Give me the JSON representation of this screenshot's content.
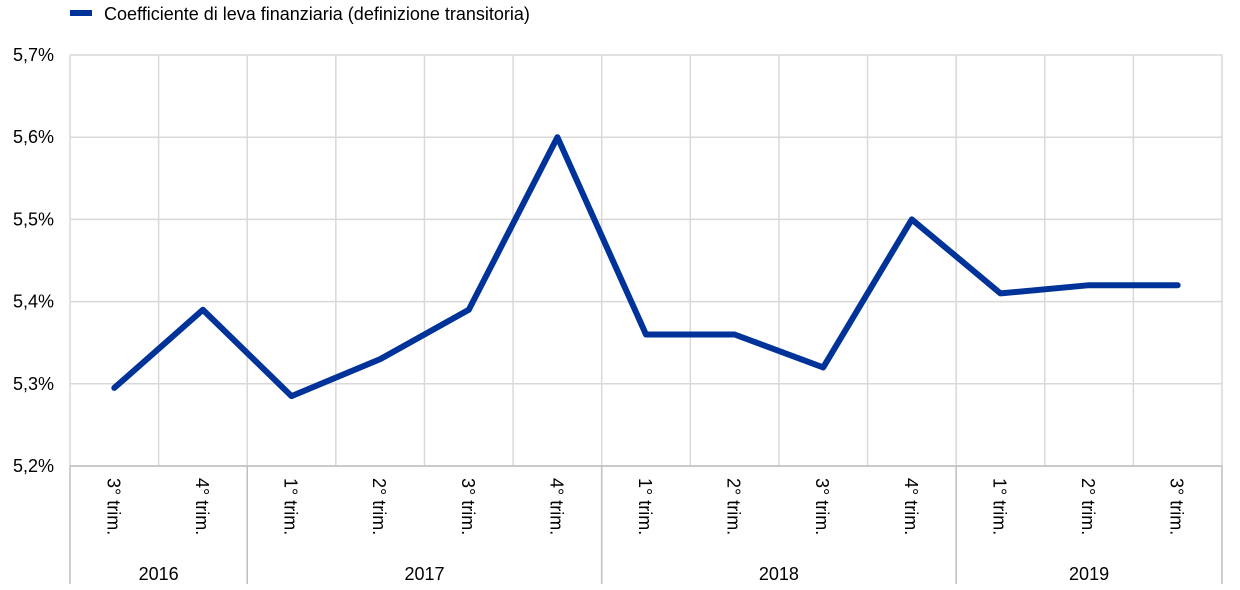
{
  "chart_data": {
    "type": "line",
    "title": "",
    "xlabel": "",
    "ylabel": "",
    "ylim": [
      5.2,
      5.7
    ],
    "yticks": [
      "5,7%",
      "5,6%",
      "5,5%",
      "5,4%",
      "5,3%",
      "5,2%"
    ],
    "ytick_values": [
      5.7,
      5.6,
      5.5,
      5.4,
      5.3,
      5.2
    ],
    "grid": true,
    "legend_position": "top-left",
    "categories": [
      "3° trim.",
      "4° trim.",
      "1° trim.",
      "2° trim.",
      "3° trim.",
      "4° trim.",
      "1° trim.",
      "2° trim.",
      "3° trim.",
      "4° trim.",
      "1° trim.",
      "2° trim.",
      "3° trim."
    ],
    "years": [
      {
        "label": "2016",
        "span": 2
      },
      {
        "label": "2017",
        "span": 4
      },
      {
        "label": "2018",
        "span": 4
      },
      {
        "label": "2019",
        "span": 3
      }
    ],
    "series": [
      {
        "name": "Coefficiente di leva finanziaria (definizione transitoria)",
        "color": "#003399",
        "values": [
          5.295,
          5.39,
          5.285,
          5.33,
          5.39,
          5.6,
          5.36,
          5.36,
          5.32,
          5.5,
          5.41,
          5.42,
          5.42
        ]
      }
    ]
  }
}
